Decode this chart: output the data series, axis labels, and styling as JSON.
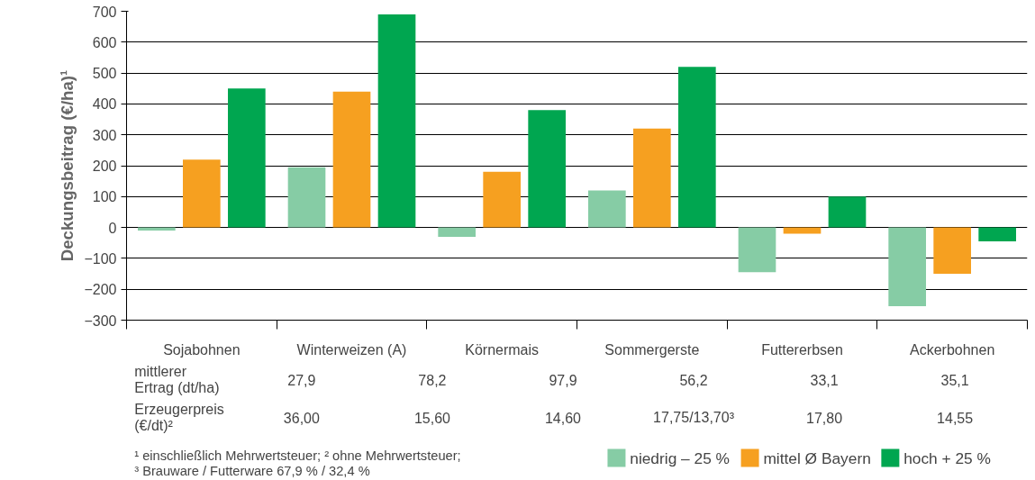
{
  "chart_data": {
    "type": "bar",
    "ylabel": "Deckungsbeitrag (€/ha)¹",
    "categories": [
      "Sojabohnen",
      "Winterweizen (A)",
      "Körnermais",
      "Sommergerste",
      "Futtererbsen",
      "Ackerbohnen"
    ],
    "series": [
      {
        "name": "niedrig – 25 %",
        "color": "#86cca5",
        "values": [
          -10,
          195,
          -30,
          120,
          -145,
          -255
        ]
      },
      {
        "name": "mittel Ø Bayern",
        "color": "#f6a020",
        "values": [
          220,
          440,
          180,
          320,
          -20,
          -150
        ]
      },
      {
        "name": "hoch + 25 %",
        "color": "#00a650",
        "values": [
          450,
          690,
          380,
          520,
          100,
          -45
        ]
      }
    ],
    "ylim": [
      -300,
      700
    ],
    "yticks": [
      -300,
      -200,
      -100,
      0,
      100,
      200,
      300,
      400,
      500,
      600,
      700
    ],
    "grid": "y",
    "legend": "bottom right",
    "annotations": [
      "mittlerer Ertrag (dt/ha)",
      "27,9",
      "78,2",
      "97,9",
      "56,2",
      "33,1",
      "35,1",
      "Erzeugerpreis (€/dt)²",
      "36,00",
      "15,60",
      "14,60",
      "17,75/13,70³",
      "17,80",
      "14,55",
      "¹ einschließlich Mehrwertsteuer; ² ohne Mehrwertsteuer;",
      "³ Brauware / Futterware 67,9 % / 32,4 %"
    ]
  }
}
